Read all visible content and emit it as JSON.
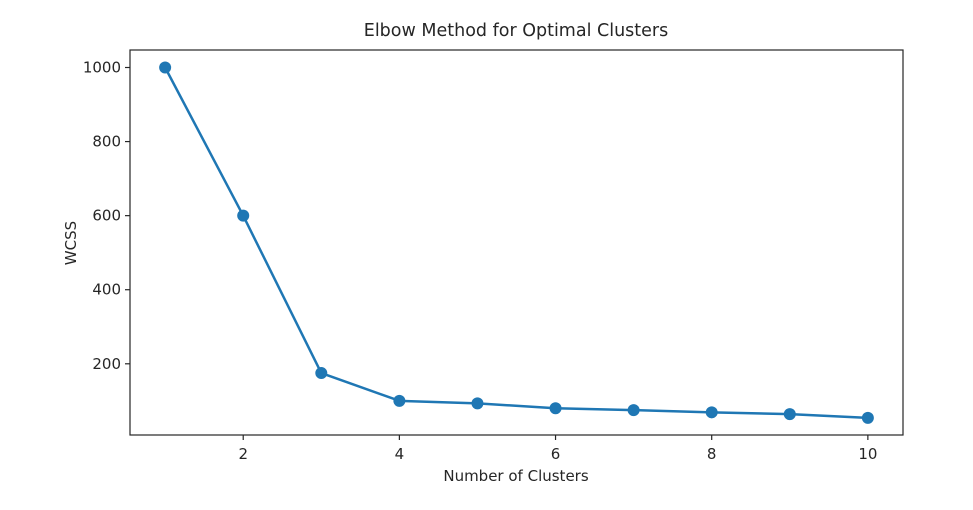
{
  "figure": {
    "background": "#ffffff"
  },
  "chart_data": {
    "type": "line",
    "title": "Elbow Method for Optimal Clusters",
    "xlabel": "Number of Clusters",
    "ylabel": "WCSS",
    "x": [
      1,
      2,
      3,
      4,
      5,
      6,
      7,
      8,
      9,
      10
    ],
    "series": [
      {
        "name": "WCSS",
        "values": [
          1000,
          600,
          175,
          100,
          93,
          80,
          75,
          69,
          64,
          54
        ],
        "color": "#1f77b4",
        "marker": "circle",
        "marker_size": 6,
        "line_width": 2.5
      }
    ],
    "xticks": [
      2,
      4,
      6,
      8,
      10
    ],
    "yticks": [
      200,
      400,
      600,
      800,
      1000
    ],
    "xlim": [
      0.55,
      10.45
    ],
    "ylim": [
      7.75,
      1047.25
    ],
    "grid": false,
    "legend": "none"
  },
  "style": {
    "axis_color": "#262626",
    "text_color": "#262626",
    "tick_length": 5
  }
}
